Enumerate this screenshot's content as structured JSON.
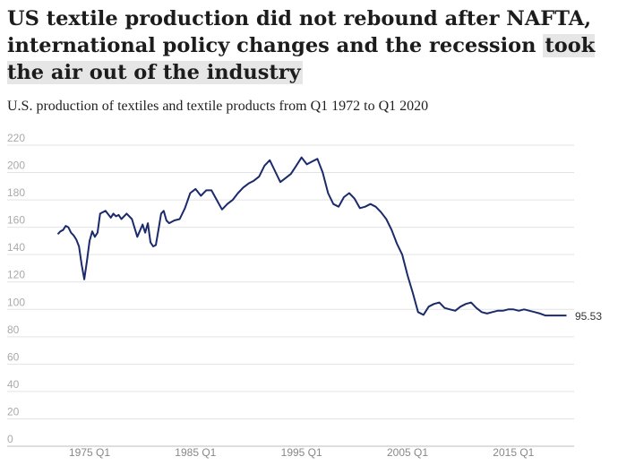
{
  "title": {
    "main": "US textile production did not rebound after NAFTA, international policy changes and the recession ",
    "highlight": "took the air out of the industry"
  },
  "subtitle": "U.S. production of textiles and textile products from Q1 1972 to Q1 2020",
  "chart_data": {
    "type": "line",
    "title": "US textile production did not rebound after NAFTA, international policy changes and the recession took the air out of the industry",
    "subtitle": "U.S. production of textiles and textile products from Q1 1972 to Q1 2020",
    "ylim": [
      0,
      220
    ],
    "yticks": [
      0,
      20,
      40,
      60,
      80,
      100,
      120,
      140,
      160,
      180,
      200,
      220
    ],
    "xlim": [
      1972,
      2020
    ],
    "xticks": [
      {
        "value": 1975,
        "label": "1975 Q1"
      },
      {
        "value": 1985,
        "label": "1985 Q1"
      },
      {
        "value": 1995,
        "label": "1995 Q1"
      },
      {
        "value": 2005,
        "label": "2005 Q1"
      },
      {
        "value": 2015,
        "label": "2015 Q1"
      }
    ],
    "grid": true,
    "line_color": "#1b2a6b",
    "end_label": "95.53",
    "series": [
      {
        "x": [
          1972.0,
          1972.25,
          1972.5,
          1972.75,
          1973.0,
          1973.25,
          1973.5,
          1973.75,
          1974.0,
          1974.25,
          1974.5,
          1974.75,
          1975.0,
          1975.25,
          1975.5,
          1975.75,
          1976.0,
          1976.5,
          1977.0,
          1977.25,
          1977.5,
          1977.75,
          1978.0,
          1978.5,
          1979.0,
          1979.5,
          1980.0,
          1980.25,
          1980.5,
          1980.75,
          1981.0,
          1981.25,
          1981.5,
          1981.75,
          1982.0,
          1982.25,
          1982.5,
          1983.0,
          1983.5,
          1984.0,
          1984.5,
          1985.0,
          1985.5,
          1986.0,
          1986.5,
          1987.0,
          1987.5,
          1988.0,
          1988.5,
          1989.0,
          1989.5,
          1990.0,
          1990.5,
          1991.0,
          1991.5,
          1992.0,
          1992.5,
          1993.0,
          1993.5,
          1994.0,
          1994.5,
          1995.0,
          1995.5,
          1996.0,
          1996.5,
          1997.0,
          1997.5,
          1998.0,
          1998.5,
          1999.0,
          1999.5,
          2000.0,
          2000.5,
          2001.0,
          2001.5,
          2002.0,
          2002.5,
          2003.0,
          2003.5,
          2004.0,
          2004.5,
          2005.0,
          2005.5,
          2006.0,
          2006.5,
          2007.0,
          2007.5,
          2008.0,
          2008.5,
          2009.0,
          2009.5,
          2010.0,
          2010.5,
          2011.0,
          2011.5,
          2012.0,
          2012.5,
          2013.0,
          2013.5,
          2014.0,
          2014.5,
          2015.0,
          2015.5,
          2016.0,
          2016.5,
          2017.0,
          2017.5,
          2018.0,
          2018.5,
          2019.0,
          2019.5,
          2020.0
        ],
        "values": [
          155,
          157,
          158,
          161,
          160,
          156,
          154,
          151,
          146,
          133,
          122,
          135,
          150,
          157,
          153,
          156,
          170,
          172,
          167,
          170,
          168,
          169,
          166,
          170,
          166,
          153,
          162,
          156,
          163,
          149,
          146,
          147,
          158,
          170,
          172,
          165,
          163,
          165,
          166,
          174,
          185,
          188,
          183,
          187,
          187,
          180,
          173,
          177,
          180,
          185,
          189,
          192,
          194,
          197,
          205,
          209,
          201,
          193,
          196,
          199,
          205,
          211,
          206,
          208,
          210,
          200,
          185,
          177,
          175,
          182,
          185,
          181,
          174,
          175,
          177,
          175,
          171,
          166,
          158,
          148,
          140,
          125,
          112,
          98,
          96,
          102,
          104,
          105,
          101,
          100,
          99,
          102,
          104,
          105,
          101,
          98,
          97,
          98,
          99,
          99,
          100,
          100,
          99,
          100,
          99,
          98,
          97,
          95.53,
          95.5,
          95.53,
          95.5,
          95.53
        ]
      }
    ]
  }
}
